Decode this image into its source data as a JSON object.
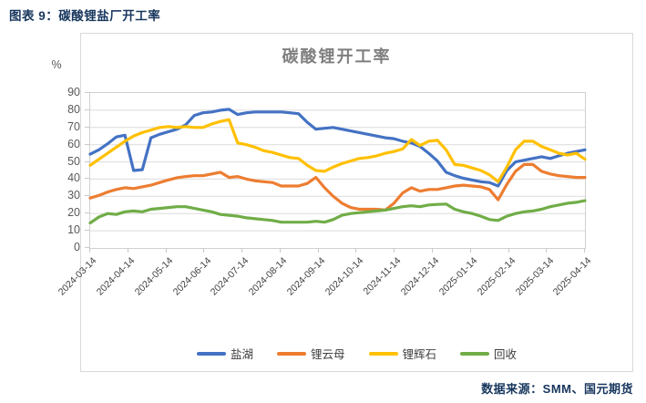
{
  "caption": "图表 9：碳酸锂盐厂开工率",
  "footer": {
    "source": "数据来源：SMM、国元期货"
  },
  "colors": {
    "caption_text": "#17365D",
    "title_text": "#7F7F7F",
    "axis_text": "#595959",
    "gridline": "#DCDCDC",
    "plot_border": "#D0D0D0",
    "series_blue": "#4472C4",
    "series_orange": "#ED7D31",
    "series_yellow": "#FFC000",
    "series_green": "#70AD47"
  },
  "chart_data": {
    "type": "line",
    "title": "碳酸锂开工率",
    "y_unit_label": "%",
    "ylim": [
      0,
      90
    ],
    "yticks": [
      0,
      10,
      20,
      30,
      40,
      50,
      60,
      70,
      80,
      90
    ],
    "grid": "horizontal",
    "legend_position": "bottom",
    "x_sampling": "weekly",
    "x_tick_labels": [
      "2024-03-14",
      "2024-04-14",
      "2024-05-14",
      "2024-06-14",
      "2024-07-14",
      "2024-08-14",
      "2024-09-14",
      "2024-10-14",
      "2024-11-14",
      "2024-12-14",
      "2025-01-14",
      "2025-02-14",
      "2025-03-14",
      "2025-04-14"
    ],
    "series": [
      {
        "id": "yanhu",
        "name": "盐湖",
        "color": "#4472C4",
        "values": [
          54.5,
          57,
          60.5,
          64.5,
          65.5,
          45,
          45.5,
          64,
          66,
          67.5,
          69,
          71.5,
          77,
          78.5,
          79,
          80,
          80.5,
          77.5,
          78.5,
          79,
          79,
          79,
          79,
          78.5,
          78,
          73,
          69,
          69.5,
          70,
          69,
          68,
          67,
          66,
          65,
          64,
          63.5,
          62,
          61,
          59,
          55,
          50.5,
          44,
          42,
          40.5,
          39.5,
          38.5,
          38,
          36,
          45,
          50,
          51,
          52,
          53,
          52,
          53.5,
          55,
          56,
          57
        ]
      },
      {
        "id": "liyunmu",
        "name": "锂云母",
        "color": "#ED7D31",
        "values": [
          29,
          30.5,
          32.5,
          34,
          35,
          34.5,
          35.5,
          36.5,
          38,
          39.5,
          40.8,
          41.5,
          42,
          42,
          43,
          44,
          41,
          41.5,
          40,
          39,
          38.5,
          38,
          36,
          36,
          36,
          37.5,
          41,
          35,
          30,
          26,
          23.5,
          22.5,
          22.5,
          22.5,
          22,
          26,
          32,
          35,
          33,
          34,
          34,
          35,
          36,
          36.5,
          36,
          35.5,
          34,
          28,
          37,
          44.5,
          48.5,
          48.5,
          44.5,
          43,
          42,
          41.5,
          41,
          41
        ]
      },
      {
        "id": "lihuishi",
        "name": "锂辉石",
        "color": "#FFC000",
        "values": [
          48,
          51.5,
          55,
          58.5,
          62,
          65,
          67,
          68.5,
          70,
          70.5,
          70,
          70.5,
          70,
          70,
          72,
          73.5,
          74.5,
          61,
          60,
          58.5,
          56.5,
          55.5,
          54,
          52.5,
          52,
          48,
          45,
          44.5,
          47,
          49,
          50.5,
          52,
          52.5,
          53.5,
          55,
          56,
          57.5,
          63,
          59.5,
          62,
          62.5,
          57,
          48.5,
          48,
          46.5,
          45,
          42.5,
          38.5,
          47,
          57,
          62,
          62,
          59,
          57,
          55,
          54,
          55,
          51.5
        ]
      },
      {
        "id": "huishou",
        "name": "回收",
        "color": "#70AD47",
        "values": [
          14.5,
          18,
          20,
          19.5,
          21,
          21.5,
          21,
          22.5,
          23,
          23.5,
          24,
          24,
          23,
          22,
          21,
          19.5,
          19,
          18.5,
          17.5,
          17,
          16.5,
          16,
          15,
          15,
          15,
          15,
          15.5,
          15,
          16.5,
          19,
          20,
          20.5,
          21,
          21.5,
          22,
          23,
          24,
          24.5,
          24,
          25,
          25.3,
          25.5,
          22.5,
          21,
          20,
          18.5,
          16.5,
          16,
          18.5,
          20,
          21,
          21.5,
          22.5,
          24,
          25,
          26,
          26.5,
          27.5
        ]
      }
    ]
  }
}
